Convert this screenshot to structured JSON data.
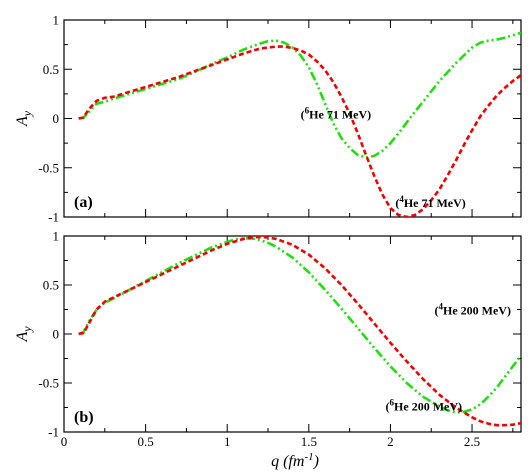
{
  "chart_data": [
    {
      "type": "line",
      "panel_label": "(a)",
      "xlabel": "",
      "ylabel": "A_y",
      "xlim": [
        0,
        2.8
      ],
      "ylim": [
        -1,
        1
      ],
      "x_ticks": [
        "0",
        "0.5",
        "1",
        "1.5",
        "2",
        "2.5"
      ],
      "y_ticks": [
        "1",
        "0.5",
        "0",
        "-0.5",
        "-1"
      ],
      "grid": false,
      "annotations": [
        {
          "sup": "6",
          "text": "He 71 MeV",
          "x": 1.45,
          "y": 0.0
        },
        {
          "sup": "4",
          "text": "He 71 MeV",
          "x": 2.03,
          "y": -0.9
        }
      ],
      "series": [
        {
          "style": "dash-dot-dot",
          "color": "#22dd11",
          "x": [
            0.09,
            0.12,
            0.15,
            0.18,
            0.2,
            0.25,
            0.3,
            0.4,
            0.5,
            0.6,
            0.7,
            0.8,
            0.9,
            1.0,
            1.1,
            1.2,
            1.25,
            1.3,
            1.35,
            1.4,
            1.45,
            1.5,
            1.55,
            1.6,
            1.65,
            1.7,
            1.75,
            1.8,
            1.85,
            1.9,
            1.95,
            2.0,
            2.05,
            2.1,
            2.15,
            2.2,
            2.3,
            2.4,
            2.5,
            2.55,
            2.6,
            2.65,
            2.7,
            2.75,
            2.8
          ],
          "y": [
            0.0,
            0.01,
            0.06,
            0.12,
            0.15,
            0.17,
            0.2,
            0.25,
            0.3,
            0.35,
            0.4,
            0.47,
            0.55,
            0.62,
            0.7,
            0.76,
            0.785,
            0.79,
            0.77,
            0.72,
            0.64,
            0.52,
            0.35,
            0.15,
            -0.05,
            -0.2,
            -0.3,
            -0.37,
            -0.395,
            -0.38,
            -0.33,
            -0.25,
            -0.15,
            -0.04,
            0.07,
            0.17,
            0.38,
            0.56,
            0.72,
            0.77,
            0.79,
            0.8,
            0.82,
            0.845,
            0.87
          ]
        },
        {
          "style": "dotted",
          "color": "#ee0000",
          "x": [
            0.09,
            0.12,
            0.15,
            0.2,
            0.25,
            0.3,
            0.4,
            0.5,
            0.6,
            0.7,
            0.8,
            0.9,
            1.0,
            1.1,
            1.2,
            1.3,
            1.35,
            1.4,
            1.45,
            1.5,
            1.55,
            1.6,
            1.65,
            1.7,
            1.75,
            1.8,
            1.85,
            1.9,
            1.95,
            2.0,
            2.05,
            2.1,
            2.15,
            2.2,
            2.25,
            2.3,
            2.35,
            2.4,
            2.45,
            2.5,
            2.55,
            2.6,
            2.65,
            2.7,
            2.75,
            2.8
          ],
          "y": [
            0.0,
            0.01,
            0.09,
            0.18,
            0.21,
            0.22,
            0.27,
            0.32,
            0.37,
            0.42,
            0.48,
            0.54,
            0.6,
            0.66,
            0.71,
            0.73,
            0.73,
            0.715,
            0.69,
            0.65,
            0.58,
            0.49,
            0.37,
            0.22,
            0.05,
            -0.15,
            -0.37,
            -0.58,
            -0.77,
            -0.91,
            -0.98,
            -1.0,
            -0.98,
            -0.92,
            -0.83,
            -0.72,
            -0.58,
            -0.43,
            -0.27,
            -0.12,
            0.02,
            0.13,
            0.23,
            0.31,
            0.38,
            0.44
          ]
        }
      ]
    },
    {
      "type": "line",
      "panel_label": "(b)",
      "xlabel": "q (fm-1)",
      "xlabel_parts": {
        "var": "q",
        "unit": "(fm",
        "exp": "-1",
        "close": ")"
      },
      "ylabel": "A_y",
      "xlim": [
        0,
        2.8
      ],
      "ylim": [
        -1,
        1
      ],
      "x_ticks": [
        "0",
        "0.5",
        "1",
        "1.5",
        "2",
        "2.5"
      ],
      "y_ticks": [
        "1",
        "0.5",
        "0",
        "-0.5",
        "-1"
      ],
      "grid": false,
      "annotations": [
        {
          "sup": "4",
          "text": "He 200 MeV",
          "x": 2.27,
          "y": 0.2
        },
        {
          "sup": "6",
          "text": "He 200 MeV",
          "x": 1.97,
          "y": -0.78
        }
      ],
      "series": [
        {
          "style": "dash-dot-dot",
          "color": "#22dd11",
          "x": [
            0.09,
            0.12,
            0.15,
            0.2,
            0.25,
            0.3,
            0.4,
            0.5,
            0.6,
            0.7,
            0.8,
            0.9,
            1.0,
            1.05,
            1.1,
            1.15,
            1.2,
            1.25,
            1.3,
            1.4,
            1.5,
            1.6,
            1.7,
            1.8,
            1.9,
            2.0,
            2.1,
            2.2,
            2.3,
            2.35,
            2.4,
            2.45,
            2.5,
            2.55,
            2.6,
            2.65,
            2.7,
            2.75,
            2.8
          ],
          "y": [
            0.0,
            0.02,
            0.12,
            0.25,
            0.32,
            0.36,
            0.45,
            0.54,
            0.63,
            0.72,
            0.8,
            0.88,
            0.94,
            0.965,
            0.975,
            0.975,
            0.96,
            0.93,
            0.89,
            0.78,
            0.63,
            0.45,
            0.26,
            0.06,
            -0.14,
            -0.33,
            -0.5,
            -0.64,
            -0.74,
            -0.78,
            -0.8,
            -0.795,
            -0.77,
            -0.72,
            -0.64,
            -0.55,
            -0.44,
            -0.33,
            -0.22
          ]
        },
        {
          "style": "dotted",
          "color": "#ee0000",
          "x": [
            0.09,
            0.12,
            0.15,
            0.2,
            0.25,
            0.3,
            0.4,
            0.5,
            0.6,
            0.7,
            0.8,
            0.9,
            1.0,
            1.1,
            1.15,
            1.2,
            1.25,
            1.3,
            1.4,
            1.5,
            1.6,
            1.7,
            1.8,
            1.9,
            2.0,
            2.1,
            2.2,
            2.3,
            2.4,
            2.5,
            2.55,
            2.6,
            2.65,
            2.7,
            2.75,
            2.8
          ],
          "y": [
            0.0,
            0.01,
            0.1,
            0.25,
            0.33,
            0.37,
            0.45,
            0.53,
            0.61,
            0.69,
            0.77,
            0.85,
            0.92,
            0.97,
            0.985,
            0.99,
            0.985,
            0.97,
            0.91,
            0.81,
            0.67,
            0.5,
            0.31,
            0.11,
            -0.09,
            -0.28,
            -0.46,
            -0.62,
            -0.75,
            -0.85,
            -0.89,
            -0.915,
            -0.93,
            -0.93,
            -0.925,
            -0.91
          ]
        }
      ]
    }
  ]
}
